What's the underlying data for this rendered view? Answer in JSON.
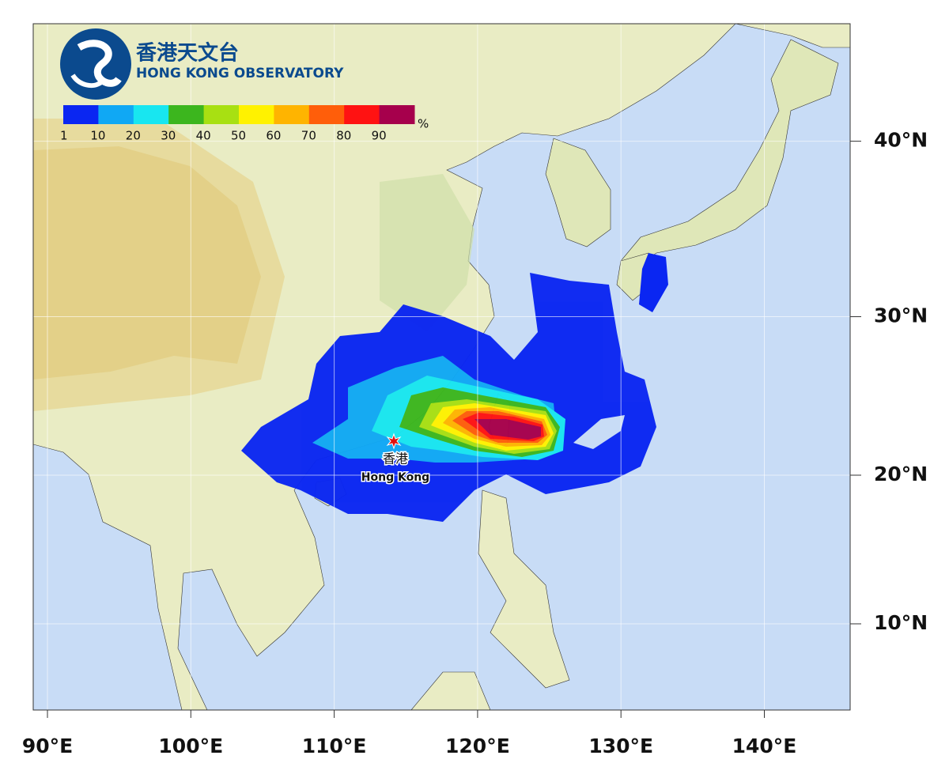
{
  "logo": {
    "chinese": "香港天文台",
    "english": "HONG KONG OBSERVATORY"
  },
  "legend": {
    "unit": "%",
    "labels": [
      1,
      10,
      20,
      30,
      40,
      50,
      60,
      70,
      80,
      90
    ],
    "colors": [
      "#0a26f2",
      "#10a8f4",
      "#18e6f0",
      "#3cb61e",
      "#a8e012",
      "#fff200",
      "#ffb400",
      "#ff5e0a",
      "#ff1212",
      "#a6004c"
    ]
  },
  "map": {
    "xticks": [
      {
        "value": 90,
        "label": "90°E"
      },
      {
        "value": 100,
        "label": "100°E"
      },
      {
        "value": 110,
        "label": "110°E"
      },
      {
        "value": 120,
        "label": "120°E"
      },
      {
        "value": 130,
        "label": "130°E"
      },
      {
        "value": 140,
        "label": "140°E"
      }
    ],
    "yticks": [
      {
        "value": 10,
        "label": "10°N"
      },
      {
        "value": 20,
        "label": "20°N"
      },
      {
        "value": 30,
        "label": "30°N"
      },
      {
        "value": 40,
        "label": "40°N"
      }
    ],
    "grid": true
  },
  "place": {
    "chinese": "香港",
    "english": "Hong Kong"
  }
}
